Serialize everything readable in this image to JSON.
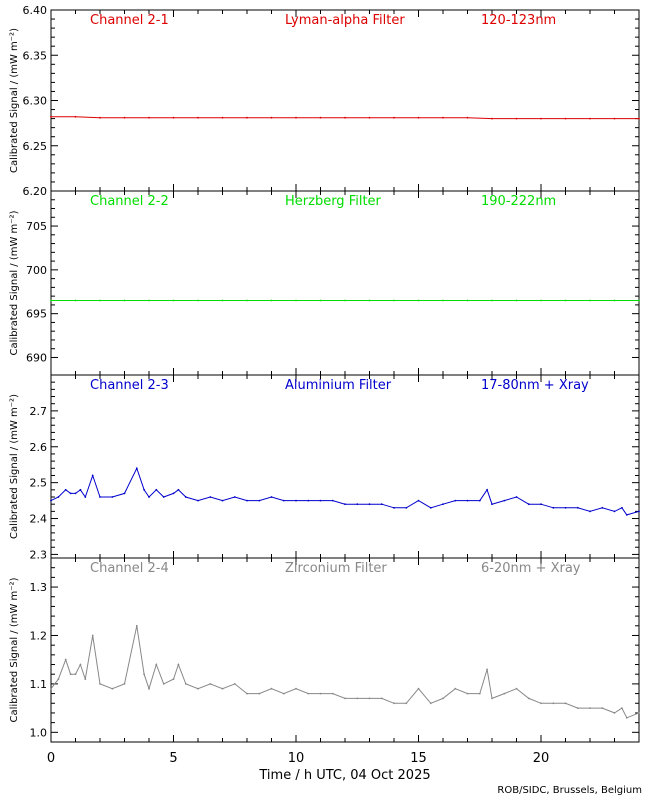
{
  "figure": {
    "xlabel": "Time / h UTC, 04 Oct 2025",
    "credit": "ROB/SIDC, Brussels, Belgium",
    "xticks": [
      0,
      5,
      10,
      15,
      20
    ],
    "xlim": [
      0,
      24
    ]
  },
  "chart_data": [
    {
      "type": "scatter",
      "channel": "Channel 2-1",
      "filter": "Lyman-alpha Filter",
      "band": "120-123nm",
      "color": "#dd0000",
      "ylabel": "Calibrated Signal / (mW m⁻²)",
      "ylim": [
        6.2,
        6.4
      ],
      "yticks": [
        "6.20",
        "6.25",
        "6.30",
        "6.35",
        "6.40"
      ],
      "series": [
        {
          "x": [
            0,
            1,
            2,
            3,
            4,
            5,
            6,
            7,
            8,
            9,
            10,
            11,
            12,
            13,
            14,
            15,
            16,
            17,
            18,
            19,
            20,
            21,
            22,
            23,
            24
          ],
          "values": [
            6.282,
            6.282,
            6.281,
            6.281,
            6.281,
            6.281,
            6.281,
            6.281,
            6.281,
            6.281,
            6.281,
            6.281,
            6.281,
            6.281,
            6.281,
            6.281,
            6.281,
            6.281,
            6.28,
            6.28,
            6.28,
            6.28,
            6.28,
            6.28,
            6.28
          ]
        }
      ]
    },
    {
      "type": "scatter",
      "channel": "Channel 2-2",
      "filter": "Herzberg Filter",
      "band": "190-222nm",
      "color": "#00dd00",
      "ylabel": "Calibrated Signal / (mW m⁻²)",
      "ylim": [
        688,
        709
      ],
      "yticks": [
        "690",
        "695",
        "700",
        "705"
      ],
      "series": [
        {
          "x": [
            0,
            1,
            2,
            3,
            4,
            5,
            6,
            7,
            8,
            9,
            10,
            11,
            12,
            13,
            14,
            15,
            16,
            17,
            18,
            19,
            20,
            21,
            22,
            23,
            24
          ],
          "values": [
            696.5,
            696.5,
            696.5,
            696.5,
            696.5,
            696.5,
            696.5,
            696.5,
            696.5,
            696.5,
            696.5,
            696.5,
            696.5,
            696.5,
            696.5,
            696.5,
            696.5,
            696.5,
            696.5,
            696.5,
            696.5,
            696.5,
            696.5,
            696.5,
            696.5
          ]
        }
      ]
    },
    {
      "type": "scatter",
      "channel": "Channel 2-3",
      "filter": "Aluminium Filter",
      "band": "17-80nm + Xray",
      "color": "#0000cc",
      "ylabel": "Calibrated Signal / (mW m⁻²)",
      "ylim": [
        2.29,
        2.8
      ],
      "yticks": [
        "2.3",
        "2.4",
        "2.5",
        "2.6",
        "2.7"
      ],
      "series": [
        {
          "x": [
            0,
            0.3,
            0.6,
            0.8,
            1.0,
            1.2,
            1.4,
            1.7,
            2.0,
            2.5,
            3.0,
            3.5,
            3.8,
            4.0,
            4.3,
            4.6,
            5.0,
            5.2,
            5.5,
            6.0,
            6.5,
            7.0,
            7.5,
            8.0,
            8.5,
            9.0,
            9.5,
            10.0,
            10.5,
            11.0,
            11.5,
            12.0,
            12.5,
            13.0,
            13.5,
            14.0,
            14.5,
            15.0,
            15.5,
            16.0,
            16.5,
            17.0,
            17.5,
            17.8,
            18.0,
            18.5,
            19.0,
            19.5,
            20.0,
            20.5,
            21.0,
            21.5,
            22.0,
            22.5,
            23.0,
            23.3,
            23.5,
            24.0
          ],
          "values": [
            2.45,
            2.46,
            2.48,
            2.47,
            2.47,
            2.48,
            2.46,
            2.52,
            2.46,
            2.46,
            2.47,
            2.54,
            2.48,
            2.46,
            2.48,
            2.46,
            2.47,
            2.48,
            2.46,
            2.45,
            2.46,
            2.45,
            2.46,
            2.45,
            2.45,
            2.46,
            2.45,
            2.45,
            2.45,
            2.45,
            2.45,
            2.44,
            2.44,
            2.44,
            2.44,
            2.43,
            2.43,
            2.45,
            2.43,
            2.44,
            2.45,
            2.45,
            2.45,
            2.48,
            2.44,
            2.45,
            2.46,
            2.44,
            2.44,
            2.43,
            2.43,
            2.43,
            2.42,
            2.43,
            2.42,
            2.43,
            2.41,
            2.42
          ]
        }
      ]
    },
    {
      "type": "scatter",
      "channel": "Channel 2-4",
      "filter": "Zirconium Filter",
      "band": "6-20nm + Xray",
      "color": "#888888",
      "ylabel": "Calibrated Signal / (mW m⁻²)",
      "ylim": [
        0.98,
        1.36
      ],
      "yticks": [
        "1.0",
        "1.1",
        "1.2",
        "1.3"
      ],
      "series": [
        {
          "x": [
            0,
            0.3,
            0.6,
            0.8,
            1.0,
            1.2,
            1.4,
            1.7,
            2.0,
            2.5,
            3.0,
            3.5,
            3.8,
            4.0,
            4.3,
            4.6,
            5.0,
            5.2,
            5.5,
            6.0,
            6.5,
            7.0,
            7.5,
            8.0,
            8.5,
            9.0,
            9.5,
            10.0,
            10.5,
            11.0,
            11.5,
            12.0,
            12.5,
            13.0,
            13.5,
            14.0,
            14.5,
            15.0,
            15.5,
            16.0,
            16.5,
            17.0,
            17.5,
            17.8,
            18.0,
            18.5,
            19.0,
            19.5,
            20.0,
            20.5,
            21.0,
            21.5,
            22.0,
            22.5,
            23.0,
            23.3,
            23.5,
            24.0
          ],
          "values": [
            1.09,
            1.11,
            1.15,
            1.12,
            1.12,
            1.14,
            1.11,
            1.2,
            1.1,
            1.09,
            1.1,
            1.22,
            1.12,
            1.09,
            1.14,
            1.1,
            1.11,
            1.14,
            1.1,
            1.09,
            1.1,
            1.09,
            1.1,
            1.08,
            1.08,
            1.09,
            1.08,
            1.09,
            1.08,
            1.08,
            1.08,
            1.07,
            1.07,
            1.07,
            1.07,
            1.06,
            1.06,
            1.09,
            1.06,
            1.07,
            1.09,
            1.08,
            1.08,
            1.13,
            1.07,
            1.08,
            1.09,
            1.07,
            1.06,
            1.06,
            1.06,
            1.05,
            1.05,
            1.05,
            1.04,
            1.05,
            1.03,
            1.04
          ]
        }
      ]
    }
  ]
}
